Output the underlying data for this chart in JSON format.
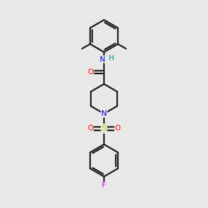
{
  "bg_color": "#e8e8e8",
  "bond_color": "#1a1a1a",
  "atom_colors": {
    "N_blue": "#0000dd",
    "N_amide": "#0000dd",
    "O": "#ff0000",
    "S": "#cccc00",
    "F": "#cc00cc",
    "H": "#008888",
    "C": "#1a1a1a"
  },
  "lw": 1.6,
  "lw_thin": 1.2
}
